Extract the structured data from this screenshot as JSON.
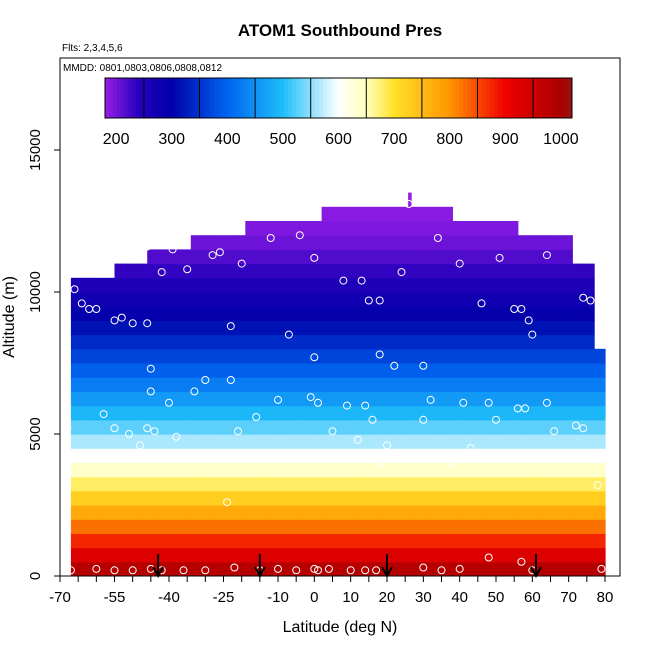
{
  "chart_data": {
    "type": "heatmap",
    "title": "ATOM1 Southbound Pres",
    "flights_note": "Flts: 2,3,4,5,6",
    "dates_note": "MMDD: 0801,0803,0806,0808,0812",
    "xlabel": "Latitude (deg N)",
    "ylabel": "Altitude (m)",
    "xlim": [
      -70,
      80
    ],
    "ylim": [
      0,
      17500
    ],
    "x_tick_labels": [
      "-70",
      "-55",
      "-40",
      "-25",
      "-10",
      "0",
      "10",
      "20",
      "30",
      "40",
      "50",
      "60",
      "70",
      "80"
    ],
    "x_tick_values": [
      -70,
      -55,
      -40,
      -25,
      -10,
      0,
      10,
      20,
      30,
      40,
      50,
      60,
      70,
      80
    ],
    "y_tick_labels": [
      "0",
      "5000",
      "10000",
      "15000"
    ],
    "y_tick_values": [
      0,
      5000,
      10000,
      15000
    ],
    "colorbar": {
      "range": [
        180,
        1020
      ],
      "tick_labels": [
        "200",
        "300",
        "400",
        "500",
        "600",
        "700",
        "800",
        "900",
        "1000"
      ],
      "tick_values": [
        200,
        300,
        400,
        500,
        600,
        700,
        800,
        900,
        1000
      ]
    },
    "grid": false,
    "data_extent": {
      "lat_min": -67,
      "lat_max": 80,
      "alt_max": 13500
    },
    "profile_top_altitude": [
      {
        "lat": -67,
        "alt": 10500
      },
      {
        "lat": -57,
        "alt": 10500
      },
      {
        "lat": -55,
        "alt": 11000
      },
      {
        "lat": -49,
        "alt": 11000
      },
      {
        "lat": -47,
        "alt": 11500
      },
      {
        "lat": -37,
        "alt": 11500
      },
      {
        "lat": -35,
        "alt": 12000
      },
      {
        "lat": -22,
        "alt": 12000
      },
      {
        "lat": -20,
        "alt": 12500
      },
      {
        "lat": 2,
        "alt": 12500
      },
      {
        "lat": 2.5,
        "alt": 13000
      },
      {
        "lat": 38,
        "alt": 13000
      },
      {
        "lat": 38.5,
        "alt": 12500
      },
      {
        "lat": 57,
        "alt": 12500
      },
      {
        "lat": 57.5,
        "alt": 12000
      },
      {
        "lat": 70,
        "alt": 12000
      },
      {
        "lat": 70.5,
        "alt": 11000
      },
      {
        "lat": 76,
        "alt": 11000
      },
      {
        "lat": 76.5,
        "alt": 10000
      },
      {
        "lat": 78,
        "alt": 10000
      },
      {
        "lat": 78.5,
        "alt": 8000
      },
      {
        "lat": 80,
        "alt": 8000
      }
    ],
    "pressure_profile": [
      {
        "alt": 0,
        "pres": 1010
      },
      {
        "alt": 500,
        "pres": 955
      },
      {
        "alt": 1000,
        "pres": 900
      },
      {
        "alt": 1500,
        "pres": 850
      },
      {
        "alt": 2000,
        "pres": 800
      },
      {
        "alt": 2500,
        "pres": 750
      },
      {
        "alt": 3000,
        "pres": 700
      },
      {
        "alt": 3500,
        "pres": 660
      },
      {
        "alt": 4000,
        "pres": 620
      },
      {
        "alt": 4500,
        "pres": 580
      },
      {
        "alt": 5000,
        "pres": 545
      },
      {
        "alt": 6000,
        "pres": 475
      },
      {
        "alt": 7000,
        "pres": 410
      },
      {
        "alt": 8000,
        "pres": 355
      },
      {
        "alt": 9000,
        "pres": 305
      },
      {
        "alt": 10000,
        "pres": 265
      },
      {
        "alt": 11000,
        "pres": 225
      },
      {
        "alt": 12000,
        "pres": 195
      },
      {
        "alt": 13000,
        "pres": 185
      },
      {
        "alt": 14000,
        "pres": 180
      }
    ],
    "observation_points": [
      [
        -67,
        200
      ],
      [
        -60,
        250
      ],
      [
        -55,
        200
      ],
      [
        -50,
        200
      ],
      [
        -45,
        250
      ],
      [
        -42,
        200
      ],
      [
        -36,
        200
      ],
      [
        -30,
        200
      ],
      [
        -22,
        300
      ],
      [
        -15,
        200
      ],
      [
        -10,
        250
      ],
      [
        -5,
        200
      ],
      [
        0,
        250
      ],
      [
        1,
        200
      ],
      [
        4,
        250
      ],
      [
        10,
        200
      ],
      [
        14,
        200
      ],
      [
        17,
        200
      ],
      [
        30,
        300
      ],
      [
        35,
        200
      ],
      [
        40,
        250
      ],
      [
        48,
        650
      ],
      [
        57,
        500
      ],
      [
        60,
        200
      ],
      [
        79,
        250
      ],
      [
        -24,
        2600
      ],
      [
        -68,
        10100
      ],
      [
        -66,
        10100
      ],
      [
        -64,
        9600
      ],
      [
        -62,
        9400
      ],
      [
        -60,
        9400
      ],
      [
        -55,
        9000
      ],
      [
        -53,
        9100
      ],
      [
        -50,
        8900
      ],
      [
        -46,
        8900
      ],
      [
        -42,
        10700
      ],
      [
        -39,
        11500
      ],
      [
        -35,
        10800
      ],
      [
        -28,
        11300
      ],
      [
        -26,
        11400
      ],
      [
        -20,
        11000
      ],
      [
        -12,
        11900
      ],
      [
        -4,
        12000
      ],
      [
        0,
        11200
      ],
      [
        8,
        10400
      ],
      [
        13,
        10400
      ],
      [
        15,
        9700
      ],
      [
        18,
        9700
      ],
      [
        24,
        10700
      ],
      [
        26,
        13100
      ],
      [
        34,
        11900
      ],
      [
        40,
        11000
      ],
      [
        46,
        9600
      ],
      [
        51,
        11200
      ],
      [
        55,
        9400
      ],
      [
        57,
        9400
      ],
      [
        59,
        9000
      ],
      [
        60,
        8500
      ],
      [
        64,
        11300
      ],
      [
        74,
        9800
      ],
      [
        76,
        9700
      ],
      [
        -46,
        11600
      ],
      [
        -23,
        8800
      ],
      [
        -7,
        8500
      ],
      [
        0,
        7700
      ],
      [
        18,
        7800
      ],
      [
        22,
        7400
      ],
      [
        30,
        7400
      ],
      [
        -45,
        7300
      ],
      [
        -45,
        6500
      ],
      [
        -40,
        6100
      ],
      [
        -33,
        6500
      ],
      [
        -30,
        6900
      ],
      [
        -23,
        6900
      ],
      [
        -10,
        6200
      ],
      [
        -1,
        6300
      ],
      [
        1,
        6100
      ],
      [
        9,
        6000
      ],
      [
        14,
        6000
      ],
      [
        32,
        6200
      ],
      [
        41,
        6100
      ],
      [
        48,
        6100
      ],
      [
        56,
        5900
      ],
      [
        58,
        5900
      ],
      [
        64,
        6100
      ],
      [
        -69,
        5800
      ],
      [
        -58,
        5700
      ],
      [
        -55,
        5200
      ],
      [
        -51,
        5000
      ],
      [
        -48,
        4600
      ],
      [
        -46,
        5200
      ],
      [
        -44,
        5100
      ],
      [
        -38,
        4900
      ],
      [
        -16,
        5600
      ],
      [
        5,
        5100
      ],
      [
        12,
        4800
      ],
      [
        16,
        5500
      ],
      [
        20,
        4600
      ],
      [
        30,
        5500
      ],
      [
        43,
        4500
      ],
      [
        50,
        5500
      ],
      [
        66,
        5100
      ],
      [
        72,
        5300
      ],
      [
        -68,
        5200
      ],
      [
        -56,
        4300
      ],
      [
        -52,
        4200
      ],
      [
        -48,
        4200
      ],
      [
        -21,
        5100
      ],
      [
        0,
        4200
      ],
      [
        18,
        4000
      ],
      [
        38,
        4000
      ],
      [
        74,
        5200
      ],
      [
        78,
        3200
      ]
    ],
    "flight_markers_lat": [
      -43,
      -15,
      20,
      61
    ]
  }
}
